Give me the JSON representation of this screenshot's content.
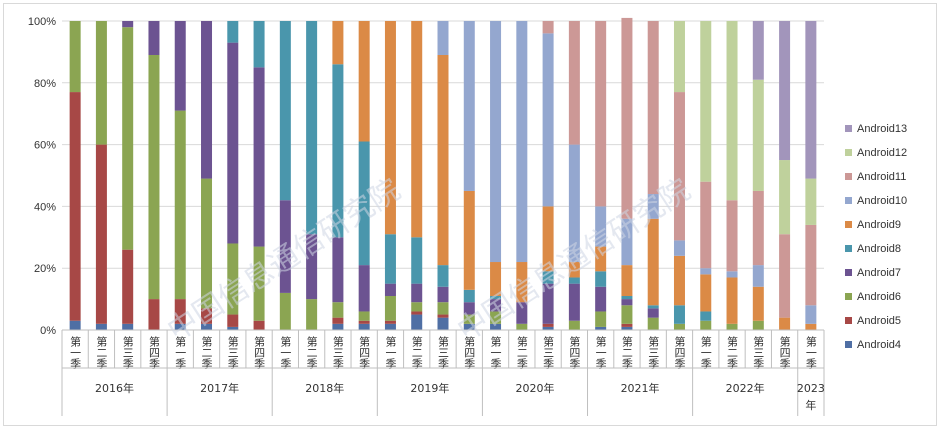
{
  "chart_data": {
    "type": "stacked-bar-100",
    "title": "",
    "xlabel": "",
    "ylabel": "",
    "ylim": [
      0,
      100
    ],
    "y_ticks": [
      "0%",
      "20%",
      "40%",
      "60%",
      "80%",
      "100%"
    ],
    "watermark": "中国信息通信研究院",
    "groups": [
      {
        "label": "2016年",
        "quarters": [
          "第一季",
          "第二季",
          "第三季",
          "第四季"
        ]
      },
      {
        "label": "2017年",
        "quarters": [
          "第一季",
          "第二季",
          "第三季",
          "第四季"
        ]
      },
      {
        "label": "2018年",
        "quarters": [
          "第一季",
          "第二季",
          "第三季",
          "第四季"
        ]
      },
      {
        "label": "2019年",
        "quarters": [
          "第一季",
          "第二季",
          "第三季",
          "第四季"
        ]
      },
      {
        "label": "2020年",
        "quarters": [
          "第一季",
          "第二季",
          "第三季",
          "第四季"
        ]
      },
      {
        "label": "2021年",
        "quarters": [
          "第一季",
          "第二季",
          "第三季",
          "第四季"
        ]
      },
      {
        "label": "2022年",
        "quarters": [
          "第一季",
          "第二季",
          "第三季",
          "第四季"
        ]
      },
      {
        "label": "2023年",
        "quarters": [
          "第一季"
        ]
      }
    ],
    "categories": [
      "2016年第一季",
      "2016年第二季",
      "2016年第三季",
      "2016年第四季",
      "2017年第一季",
      "2017年第二季",
      "2017年第三季",
      "2017年第四季",
      "2018年第一季",
      "2018年第二季",
      "2018年第三季",
      "2018年第四季",
      "2019年第一季",
      "2019年第二季",
      "2019年第三季",
      "2019年第四季",
      "2020年第一季",
      "2020年第二季",
      "2020年第三季",
      "2020年第四季",
      "2021年第一季",
      "2021年第二季",
      "2021年第三季",
      "2021年第四季",
      "2022年第一季",
      "2022年第二季",
      "2022年第三季",
      "2022年第四季",
      "2023年第一季"
    ],
    "series": [
      {
        "name": "Android4",
        "color": "#4F6FA4",
        "values": [
          3,
          2,
          2,
          0,
          2,
          2,
          1,
          0,
          0,
          0,
          2,
          2,
          2,
          5,
          4,
          2,
          2,
          0,
          1,
          0,
          1,
          1,
          0,
          0,
          0,
          0,
          0,
          0,
          0
        ]
      },
      {
        "name": "Android5",
        "color": "#A74846",
        "values": [
          74,
          58,
          24,
          10,
          8,
          5,
          4,
          3,
          0,
          0,
          2,
          1,
          1,
          1,
          1,
          0,
          0,
          0,
          1,
          0,
          0,
          1,
          0,
          0,
          0,
          0,
          0,
          0,
          0
        ]
      },
      {
        "name": "Android6",
        "color": "#8BA552",
        "values": [
          23,
          40,
          72,
          79,
          61,
          42,
          23,
          24,
          12,
          10,
          5,
          3,
          8,
          3,
          4,
          3,
          4,
          2,
          0,
          3,
          5,
          6,
          4,
          2,
          3,
          2,
          3,
          0,
          0
        ]
      },
      {
        "name": "Android7",
        "color": "#6C5391",
        "values": [
          0,
          0,
          2,
          11,
          29,
          51,
          65,
          58,
          30,
          21,
          21,
          15,
          4,
          6,
          5,
          4,
          4,
          7,
          13,
          12,
          8,
          2,
          3,
          0,
          0,
          0,
          0,
          0,
          0
        ]
      },
      {
        "name": "Android8",
        "color": "#4A96AC",
        "values": [
          0,
          0,
          0,
          0,
          0,
          0,
          7,
          15,
          58,
          69,
          56,
          40,
          16,
          15,
          7,
          4,
          1,
          0,
          4,
          2,
          5,
          1,
          1,
          6,
          3,
          0,
          0,
          0,
          0
        ]
      },
      {
        "name": "Android9",
        "color": "#DB8A46",
        "values": [
          0,
          0,
          0,
          0,
          0,
          0,
          0,
          0,
          0,
          0,
          14,
          39,
          69,
          70,
          68,
          32,
          11,
          13,
          21,
          5,
          8,
          10,
          28,
          16,
          12,
          15,
          11,
          4,
          2
        ]
      },
      {
        "name": "Android10",
        "color": "#94A7CF",
        "values": [
          0,
          0,
          0,
          0,
          0,
          0,
          0,
          0,
          0,
          0,
          0,
          0,
          0,
          0,
          11,
          55,
          78,
          78,
          56,
          38,
          13,
          15,
          8,
          5,
          2,
          2,
          7,
          0,
          6
        ]
      },
      {
        "name": "Android11",
        "color": "#CC9896",
        "values": [
          0,
          0,
          0,
          0,
          0,
          0,
          0,
          0,
          0,
          0,
          0,
          0,
          0,
          0,
          0,
          0,
          0,
          0,
          4,
          40,
          60,
          65,
          56,
          48,
          28,
          23,
          24,
          27,
          26
        ]
      },
      {
        "name": "Android12",
        "color": "#BFD19C",
        "values": [
          0,
          0,
          0,
          0,
          0,
          0,
          0,
          0,
          0,
          0,
          0,
          0,
          0,
          0,
          0,
          0,
          0,
          0,
          0,
          0,
          0,
          0,
          0,
          23,
          52,
          58,
          36,
          24,
          15
        ]
      },
      {
        "name": "Android13",
        "color": "#A295BB",
        "values": [
          0,
          0,
          0,
          0,
          0,
          0,
          0,
          0,
          0,
          0,
          0,
          0,
          0,
          0,
          0,
          0,
          0,
          0,
          0,
          0,
          0,
          0,
          0,
          0,
          0,
          0,
          19,
          45,
          51
        ]
      }
    ],
    "legend_position": "right",
    "grid": true
  }
}
